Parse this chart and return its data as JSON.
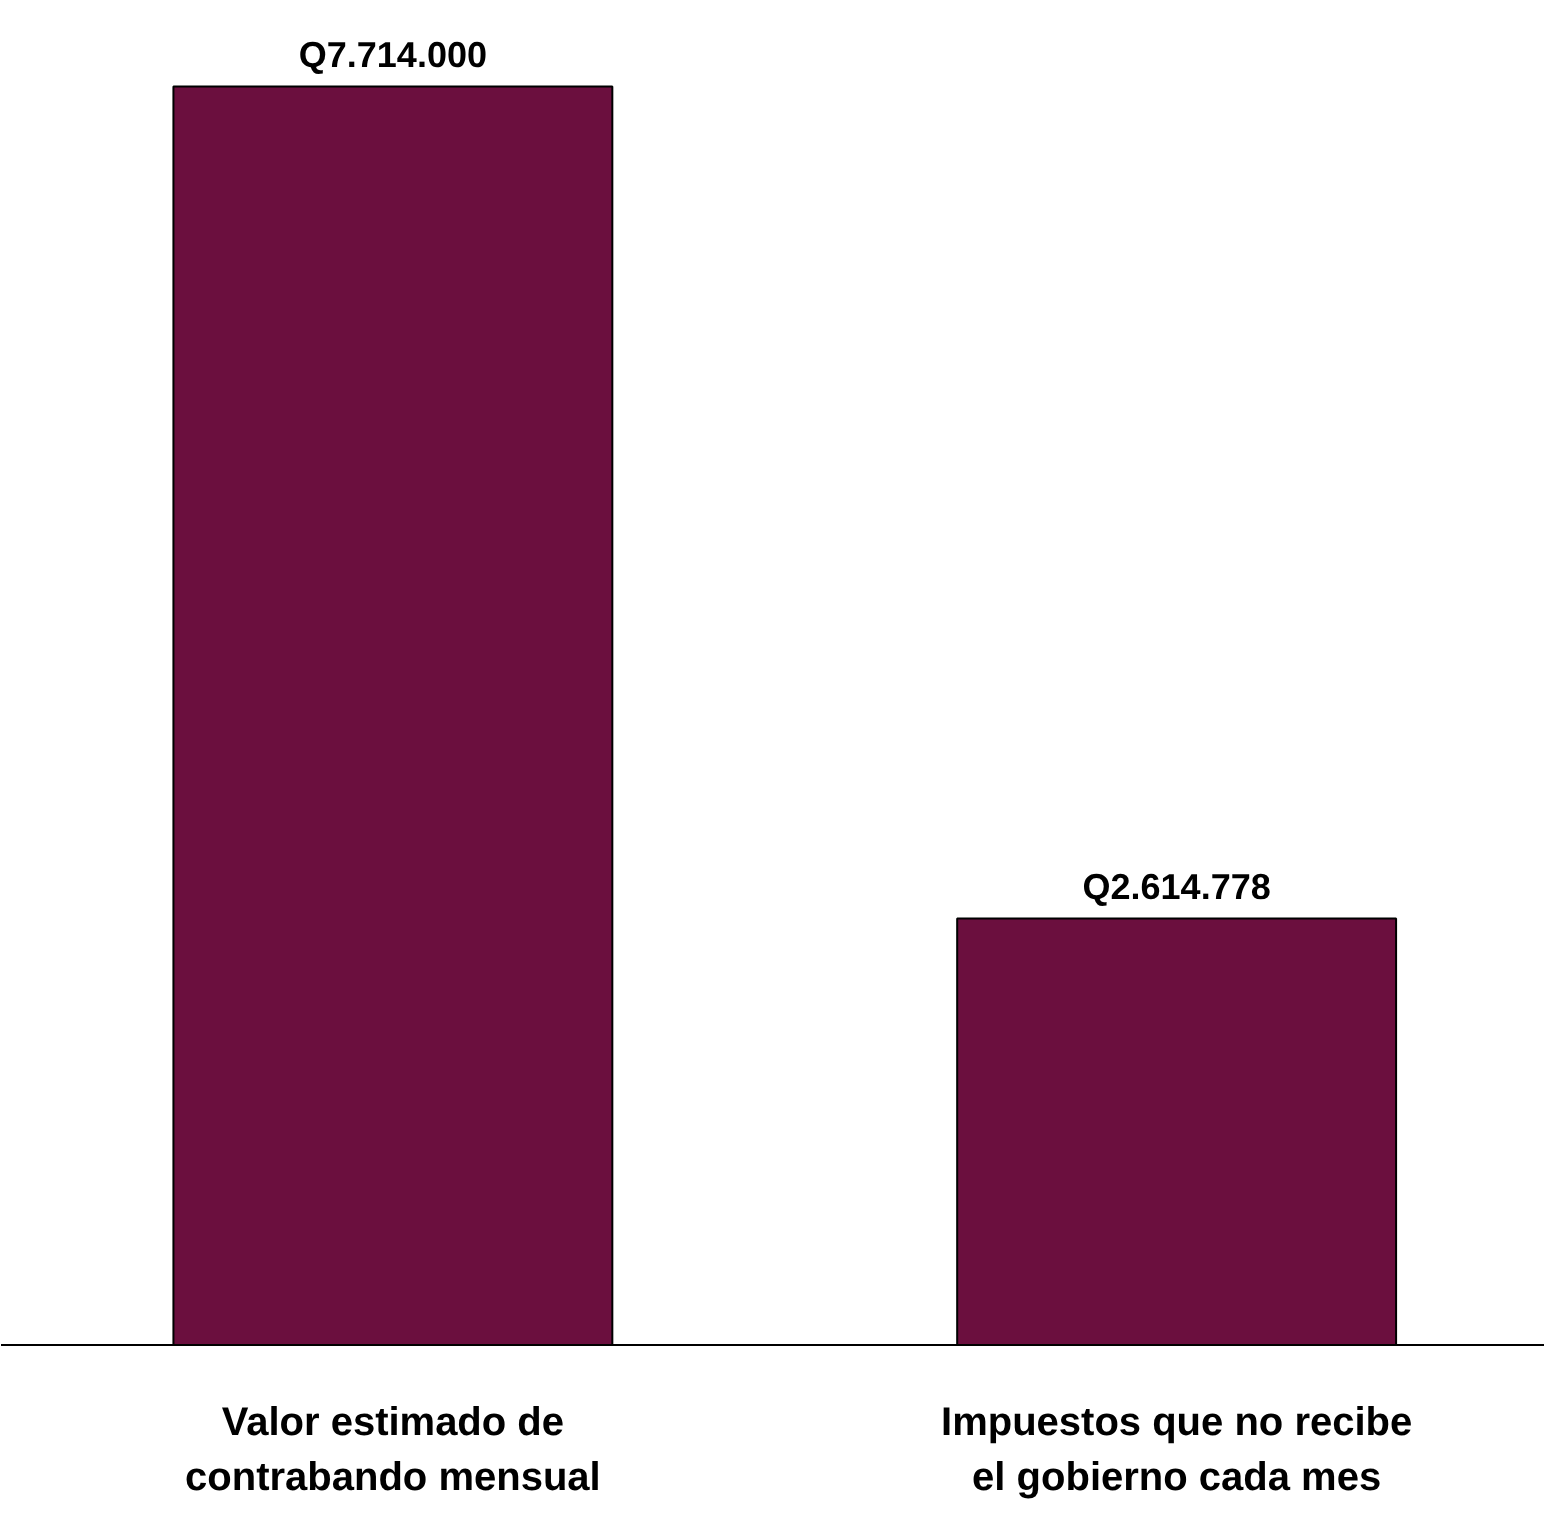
{
  "chart_data": {
    "type": "bar",
    "categories": [
      "Valor estimado de contrabando mensual",
      "Impuestos que no recibe el gobierno cada mes"
    ],
    "values": [
      7714000,
      2614778
    ],
    "color": "#6b0f3e",
    "value_labels": [
      "Q7.714.000",
      "Q2.614.778"
    ],
    "grid": false
  }
}
